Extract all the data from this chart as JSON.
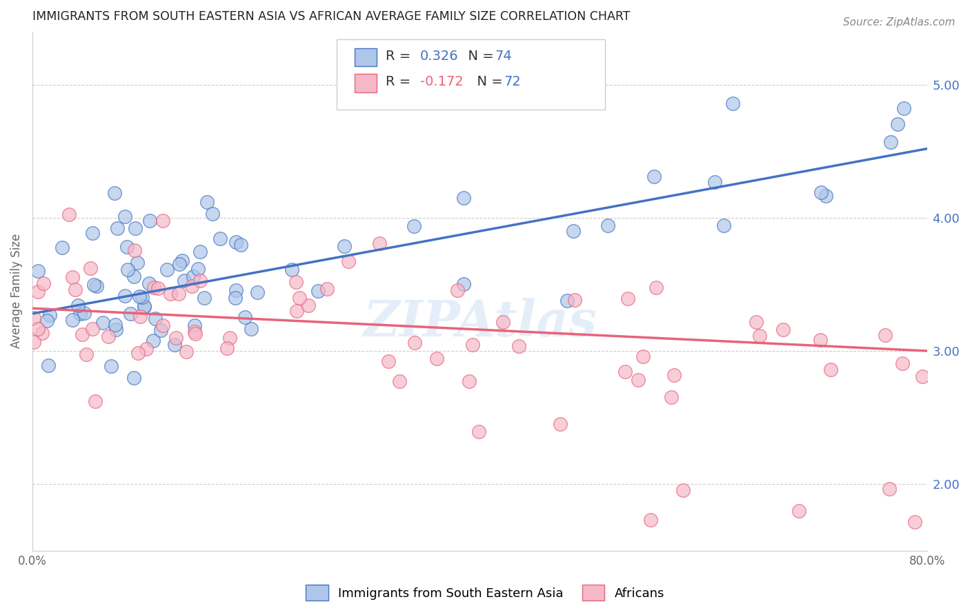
{
  "title": "IMMIGRANTS FROM SOUTH EASTERN ASIA VS AFRICAN AVERAGE FAMILY SIZE CORRELATION CHART",
  "source": "Source: ZipAtlas.com",
  "ylabel": "Average Family Size",
  "legend_label1": "Immigrants from South Eastern Asia",
  "legend_label2": "Africans",
  "R1": "0.326",
  "N1": "74",
  "R2": "-0.172",
  "N2": "72",
  "watermark": "ZIPAtlas",
  "color_blue": "#aec6e8",
  "color_pink": "#f5b8c8",
  "line_blue": "#4472c4",
  "line_pink": "#e8637a",
  "xlim": [
    0,
    80
  ],
  "ylim": [
    1.5,
    5.4
  ],
  "blue_line_start": 3.28,
  "blue_line_end": 4.52,
  "pink_line_start": 3.32,
  "pink_line_end": 3.0,
  "figsize": [
    14.06,
    8.92
  ],
  "dpi": 100
}
